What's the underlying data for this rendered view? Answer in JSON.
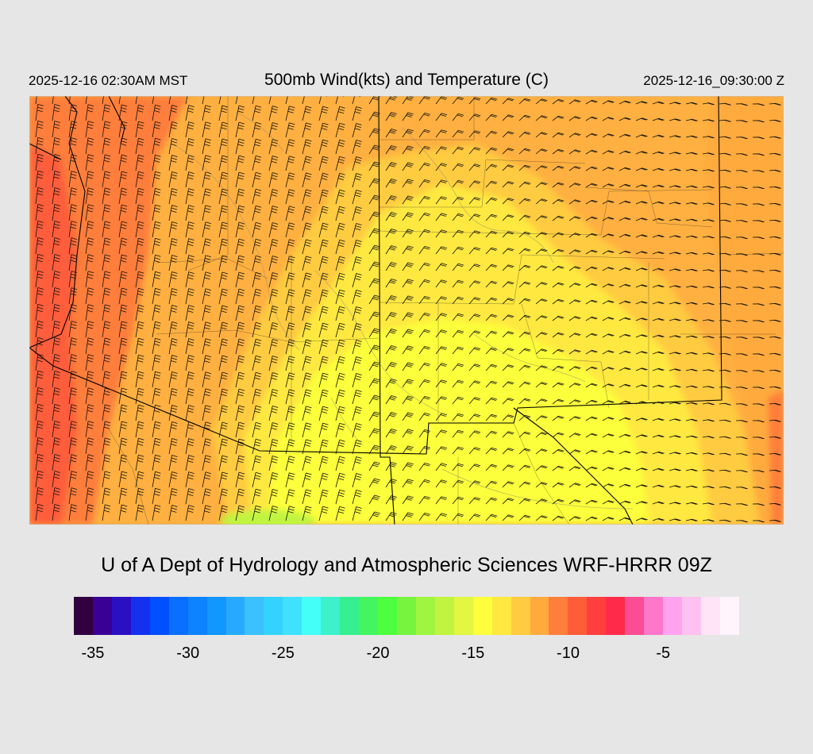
{
  "header": {
    "local_time": "2025-12-16 02:30AM MST",
    "title": "500mb Wind(kts) and Temperature (C)",
    "utc_time": "2025-12-16_09:30:00 Z"
  },
  "credit": "U of A Dept of Hydrology and Atmospheric Sciences WRF-HRRR 09Z",
  "legend": {
    "colors": [
      "#33003f",
      "#3a0096",
      "#2a0fc3",
      "#1431ef",
      "#0050ff",
      "#0a6eff",
      "#0d83ff",
      "#1296ff",
      "#26aaff",
      "#3bc1ff",
      "#34d2ff",
      "#3ee2ff",
      "#43fff7",
      "#3cf1cc",
      "#35ef90",
      "#43f660",
      "#4dff3e",
      "#77f43e",
      "#9ff53f",
      "#c1f440",
      "#e2f642",
      "#fcff3a",
      "#ffe840",
      "#ffcb41",
      "#ffaa3d",
      "#ff7e3b",
      "#ff5d3a",
      "#ff3f3d",
      "#ff2a49",
      "#fc4d94",
      "#ff77c9",
      "#ffa3ef",
      "#ffc1ef",
      "#ffe3f7",
      "#fff4fb"
    ],
    "tick_labels": [
      {
        "label": "-35",
        "index": 1
      },
      {
        "label": "-30",
        "index": 6
      },
      {
        "label": "-25",
        "index": 11
      },
      {
        "label": "-20",
        "index": 16
      },
      {
        "label": "-15",
        "index": 21
      },
      {
        "label": "-10",
        "index": 26
      },
      {
        "label": "-5",
        "index": 31
      }
    ]
  },
  "map": {
    "color_warm": "#ff5a3a",
    "color_orange": "#ffb040",
    "color_yellow": "#ffee3c",
    "color_green": "#bff442",
    "border_color": "#000000",
    "contour_color": "#8a8a70"
  }
}
